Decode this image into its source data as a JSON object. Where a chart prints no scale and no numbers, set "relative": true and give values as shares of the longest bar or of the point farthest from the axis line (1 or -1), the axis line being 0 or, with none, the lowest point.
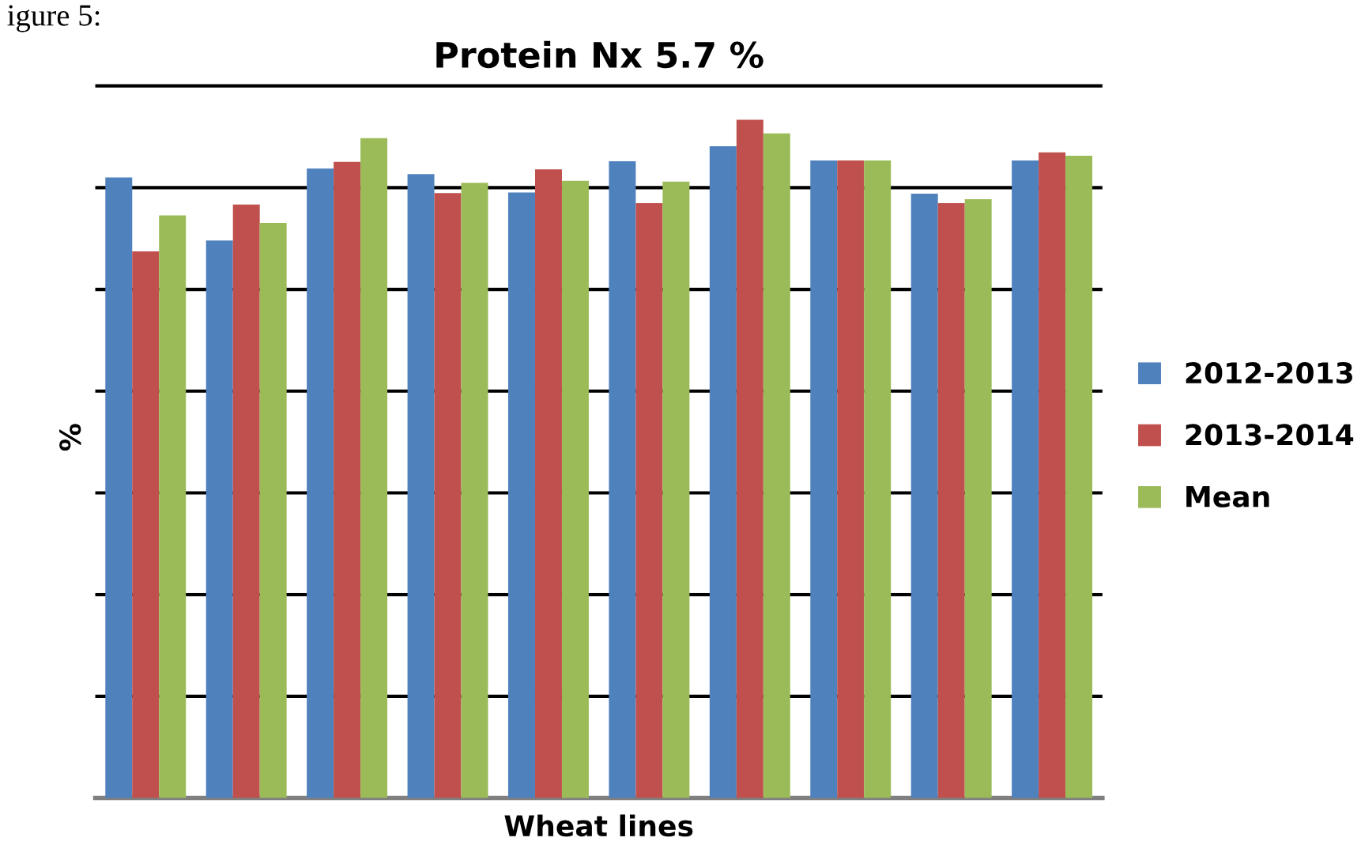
{
  "chart_data": {
    "type": "bar",
    "title": "Protein Nx 5.7 %",
    "xlabel": "Wheat lines",
    "ylabel": "%",
    "relative": true,
    "categories": [
      null,
      null,
      null,
      null,
      null,
      null,
      null,
      null,
      null,
      null
    ],
    "series": [
      {
        "name": "2012-2013",
        "color": "#4f81bd",
        "values": [
          0.915,
          0.822,
          0.928,
          0.92,
          0.893,
          0.939,
          0.961,
          0.94,
          0.891,
          0.94
        ]
      },
      {
        "name": "2013-2014",
        "color": "#c0504d",
        "values": [
          0.806,
          0.875,
          0.938,
          0.892,
          0.927,
          0.877,
          1,
          0.94,
          0.877,
          0.952
        ]
      },
      {
        "name": "Mean",
        "color": "#9bbb59",
        "values": [
          0.859,
          0.848,
          0.973,
          0.907,
          0.91,
          0.909,
          0.98,
          0.94,
          0.883,
          0.947
        ]
      }
    ],
    "grid": "y",
    "legend": "right",
    "annotations": [
      "igure 5:"
    ]
  }
}
